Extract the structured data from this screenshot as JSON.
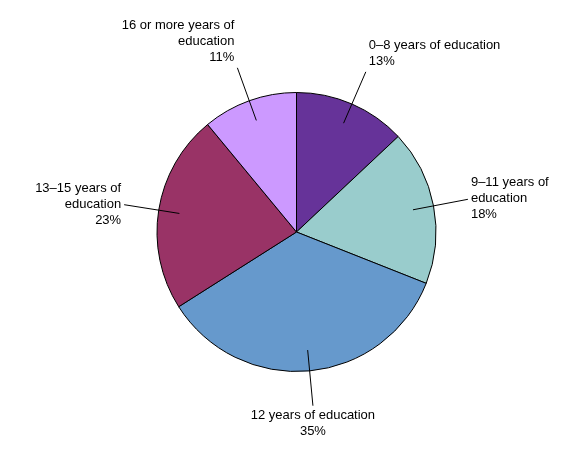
{
  "chart_data": {
    "type": "pie",
    "categories": [
      "0–8 years of education",
      "9–11 years of education",
      "12 years of education",
      "13–15 years of education",
      "16 or more years of education"
    ],
    "values": [
      13,
      18,
      35,
      23,
      11
    ],
    "value_labels": [
      "13%",
      "18%",
      "35%",
      "23%",
      "11%"
    ],
    "colors": [
      "#663399",
      "#99cccc",
      "#6699cc",
      "#993366",
      "#cc99ff"
    ],
    "data_labels": true
  }
}
